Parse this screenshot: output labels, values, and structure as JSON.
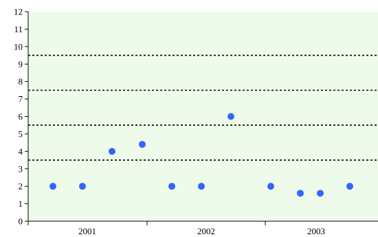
{
  "chart_data": {
    "type": "scatter",
    "title": "",
    "xlabel": "",
    "ylabel": "",
    "ylim": [
      0,
      12
    ],
    "yticks": [
      "0",
      "1",
      "2",
      "3",
      "4",
      "5",
      "6",
      "7",
      "8",
      "9",
      "10",
      "11",
      "12"
    ],
    "categories": [
      "2001",
      "2002",
      "2003"
    ],
    "series": [
      {
        "points": [
          {
            "x": 1,
            "y": 2
          },
          {
            "x": 2,
            "y": 2
          },
          {
            "x": 3,
            "y": 4
          },
          {
            "x": 4,
            "y": 4.4
          },
          {
            "x": 5,
            "y": 2
          },
          {
            "x": 6,
            "y": 2
          },
          {
            "x": 7,
            "y": 6
          },
          {
            "x": 8,
            "y": 2
          },
          {
            "x": 9,
            "y": 1.6
          },
          {
            "x": 10,
            "y": 1.6
          },
          {
            "x": 11,
            "y": 2
          }
        ]
      }
    ],
    "reference_lines": [
      3.5,
      5.5,
      7.5,
      9.5
    ],
    "grid": false,
    "colors": {
      "plot_background": "#eefbea",
      "marker": "#3366ff",
      "axis": "#000000",
      "reference_line": "#000000"
    }
  }
}
